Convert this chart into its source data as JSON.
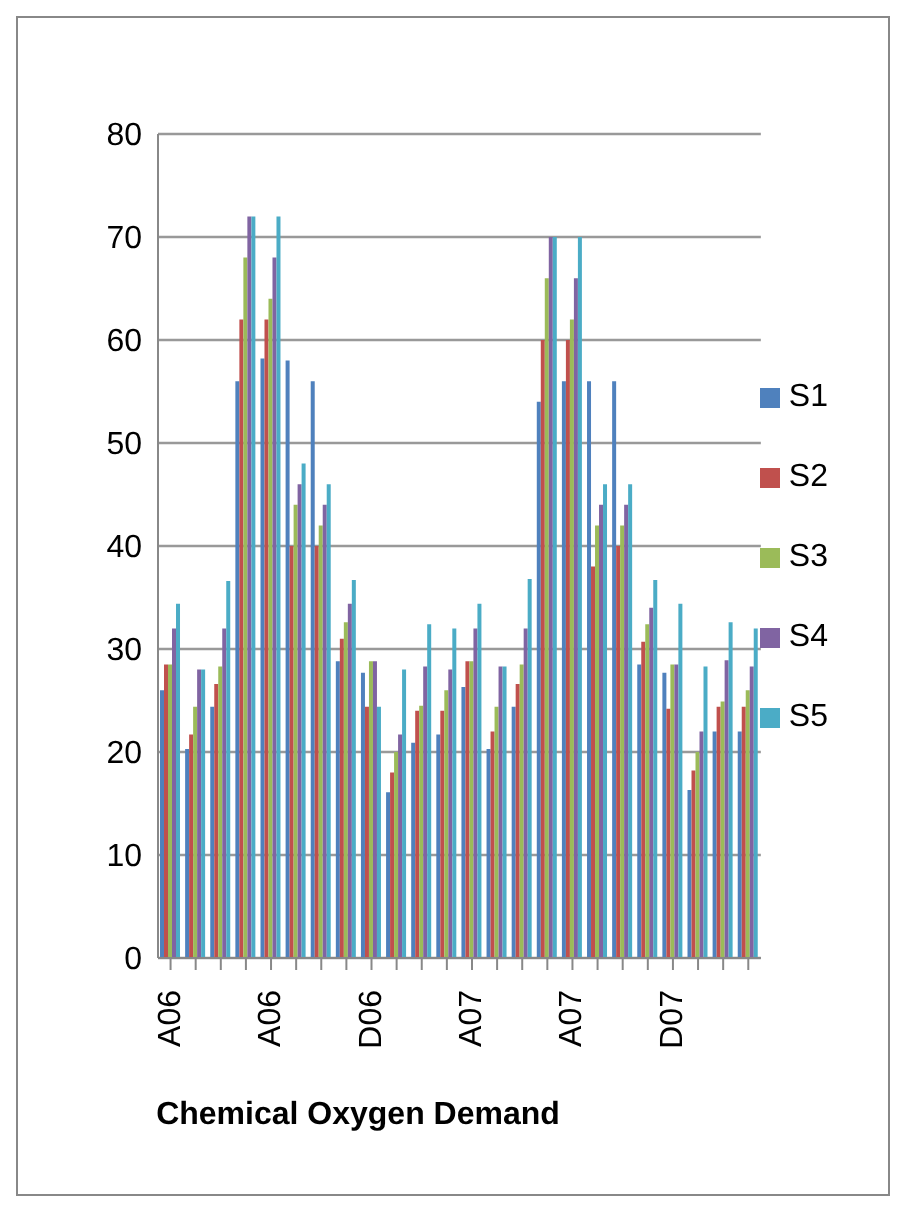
{
  "chart_data": {
    "type": "bar",
    "xlabel": "Chemical Oxygen Demand",
    "categories": [
      "A06",
      null,
      null,
      null,
      "A06",
      null,
      null,
      null,
      "D06",
      null,
      null,
      null,
      "A07",
      null,
      null,
      null,
      "A07",
      null,
      null,
      null,
      "D07",
      null,
      null,
      null
    ],
    "series": [
      {
        "name": "S1",
        "color": "#4f81bd",
        "values": [
          26,
          20.3,
          24.4,
          56,
          58.2,
          58,
          56,
          28.8,
          27.7,
          16.1,
          20.9,
          21.7,
          26.3,
          20.3,
          24.4,
          54,
          56,
          56,
          56,
          28.5,
          27.7,
          16.3,
          22,
          22
        ]
      },
      {
        "name": "S2",
        "color": "#c0504d",
        "values": [
          28.5,
          21.7,
          26.6,
          62,
          62,
          40,
          40,
          31,
          24.4,
          18,
          24,
          24,
          28.8,
          22,
          26.6,
          60,
          60,
          38,
          40,
          30.7,
          24.2,
          18.2,
          24.4,
          24.4
        ]
      },
      {
        "name": "S3",
        "color": "#9bbb59",
        "values": [
          28.5,
          24.4,
          28.3,
          68,
          64,
          44,
          42,
          32.6,
          28.8,
          20,
          24.5,
          26,
          28.8,
          24.4,
          28.5,
          66,
          62,
          42,
          42,
          32.4,
          28.5,
          20,
          24.9,
          26
        ]
      },
      {
        "name": "S4",
        "color": "#8064a2",
        "values": [
          32,
          28,
          32,
          72,
          68,
          46,
          44,
          34.4,
          28.8,
          21.7,
          28.3,
          28,
          32,
          28.3,
          32,
          70,
          66,
          44,
          44,
          34,
          28.5,
          22,
          28.9,
          28.3
        ]
      },
      {
        "name": "S5",
        "color": "#4bacc6",
        "values": [
          34.4,
          28,
          36.6,
          72,
          72,
          48,
          46,
          36.7,
          24.4,
          28,
          32.4,
          32,
          34.4,
          28.3,
          36.8,
          70,
          70,
          46,
          46,
          36.7,
          34.4,
          28.3,
          32.6,
          32
        ]
      }
    ],
    "ylim": [
      0,
      80
    ],
    "yticks": [
      0,
      10,
      20,
      30,
      40,
      50,
      60,
      70,
      80
    ],
    "grid": "y",
    "legend": "right"
  }
}
